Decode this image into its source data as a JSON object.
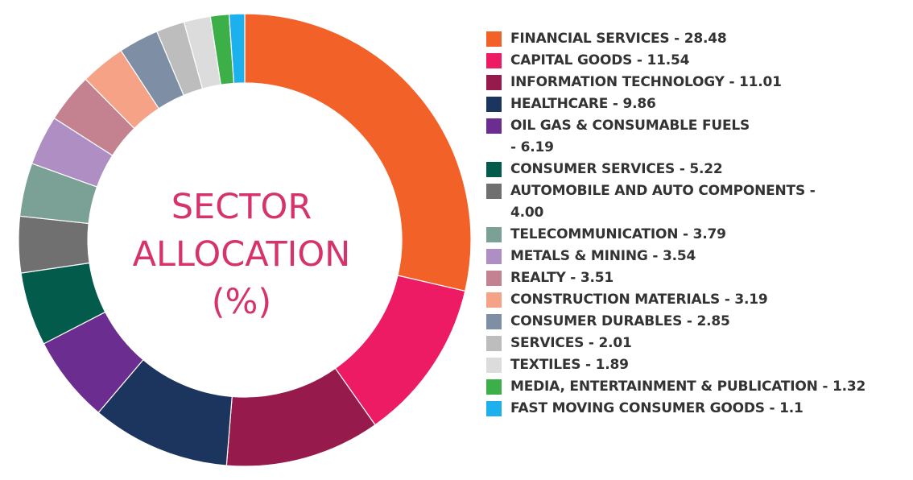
{
  "chart_data": {
    "type": "pie",
    "variant": "donut",
    "title_lines": [
      "SECTOR",
      "ALLOCATION",
      "(%)"
    ],
    "start_angle_deg": 0,
    "direction": "clockwise",
    "slices": [
      {
        "name": "FINANCIAL SERVICES",
        "value": 28.48,
        "color": "#f26127",
        "legend_label": "FINANCIAL SERVICES - 28.48"
      },
      {
        "name": "CAPITAL GOODS",
        "value": 11.54,
        "color": "#ec1b64",
        "legend_label": "CAPITAL GOODS - 11.54"
      },
      {
        "name": "INFORMATION TECHNOLOGY",
        "value": 11.01,
        "color": "#971a4c",
        "legend_label": "INFORMATION TECHNOLOGY - 11.01"
      },
      {
        "name": "HEALTHCARE",
        "value": 9.86,
        "color": "#1c355e",
        "legend_label": "HEALTHCARE - 9.86"
      },
      {
        "name": "OIL GAS & CONSUMABLE FUELS",
        "value": 6.19,
        "color": "#6c2d90",
        "legend_label": "OIL GAS & CONSUMABLE FUELS\n- 6.19"
      },
      {
        "name": "CONSUMER SERVICES",
        "value": 5.22,
        "color": "#035c4b",
        "legend_label": "CONSUMER SERVICES - 5.22"
      },
      {
        "name": "AUTOMOBILE AND AUTO COMPONENTS",
        "value": 4.0,
        "color": "#707070",
        "legend_label": "AUTOMOBILE AND AUTO COMPONENTS -\n4.00"
      },
      {
        "name": "TELECOMMUNICATION",
        "value": 3.79,
        "color": "#7ba096",
        "legend_label": "TELECOMMUNICATION - 3.79"
      },
      {
        "name": "METALS & MINING",
        "value": 3.54,
        "color": "#ae8ec3",
        "legend_label": "METALS & MINING - 3.54"
      },
      {
        "name": "REALTY",
        "value": 3.51,
        "color": "#c4818f",
        "legend_label": "REALTY - 3.51"
      },
      {
        "name": "CONSTRUCTION MATERIALS",
        "value": 3.19,
        "color": "#f5a287",
        "legend_label": "CONSTRUCTION MATERIALS - 3.19"
      },
      {
        "name": "CONSUMER DURABLES",
        "value": 2.85,
        "color": "#7e8ea5",
        "legend_label": "CONSUMER DURABLES - 2.85"
      },
      {
        "name": "SERVICES",
        "value": 2.01,
        "color": "#bdbdbd",
        "legend_label": "SERVICES - 2.01"
      },
      {
        "name": "TEXTILES",
        "value": 1.89,
        "color": "#dcdcdc",
        "legend_label": "TEXTILES - 1.89"
      },
      {
        "name": "MEDIA, ENTERTAINMENT & PUBLICATION",
        "value": 1.32,
        "color": "#3daf49",
        "legend_label": "MEDIA, ENTERTAINMENT & PUBLICATION  - 1.32"
      },
      {
        "name": "FAST MOVING CONSUMER GOODS",
        "value": 1.1,
        "color": "#1cb1ed",
        "legend_label": "FAST MOVING CONSUMER GOODS  - 1.1"
      }
    ],
    "legend_position": "right",
    "title_color": "#d6336c"
  }
}
